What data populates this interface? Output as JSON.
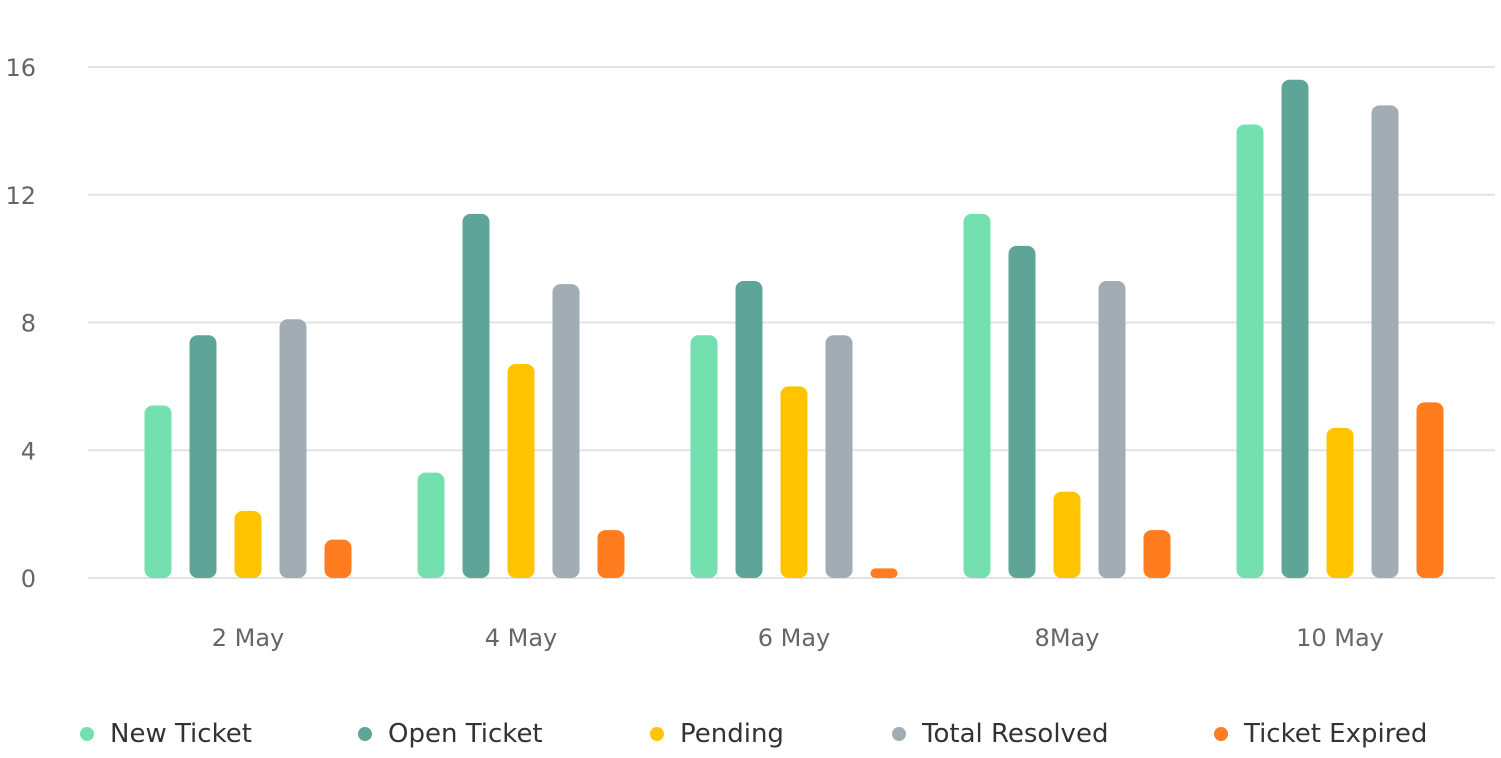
{
  "chart_data": {
    "type": "bar",
    "categories": [
      "2 May",
      "4 May",
      "6 May",
      "8May",
      "10 May"
    ],
    "series": [
      {
        "name": "New Ticket",
        "color": "#74E0B0",
        "values": [
          5.4,
          3.3,
          7.6,
          11.4,
          14.2
        ]
      },
      {
        "name": "Open Ticket",
        "color": "#5FA597",
        "values": [
          7.6,
          11.4,
          9.3,
          10.4,
          15.6
        ]
      },
      {
        "name": "Pending",
        "color": "#FFC300",
        "values": [
          2.1,
          6.7,
          6.0,
          2.7,
          4.7
        ]
      },
      {
        "name": "Total Resolved",
        "color": "#A1ACB3",
        "values": [
          8.1,
          9.2,
          7.6,
          9.3,
          14.8
        ]
      },
      {
        "name": "Ticket Expired",
        "color": "#FF7D1F",
        "values": [
          1.2,
          1.5,
          0.3,
          1.5,
          5.5
        ]
      }
    ],
    "y_ticks": [
      "0",
      "4",
      "8",
      "12",
      "16"
    ],
    "ylim": [
      0,
      16
    ],
    "grid": true,
    "legend_position": "bottom"
  }
}
